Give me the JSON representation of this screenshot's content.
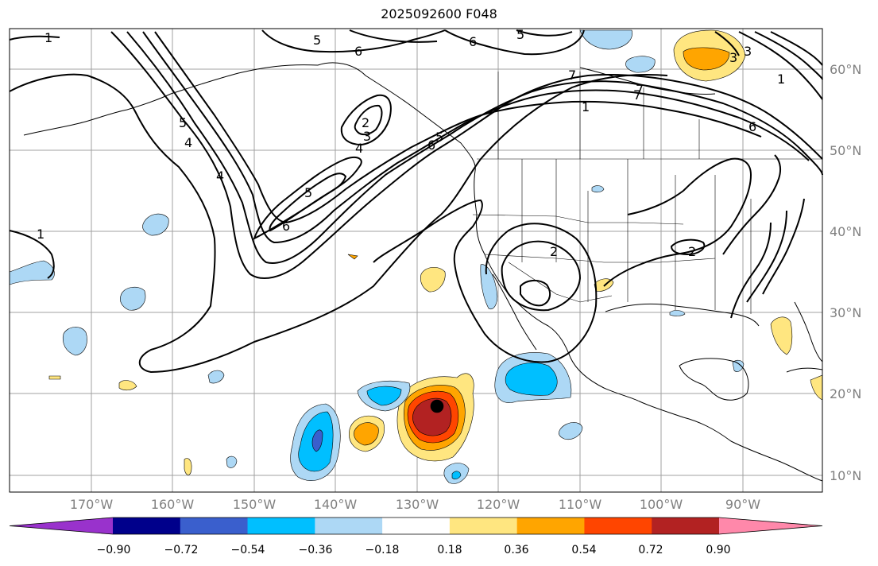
{
  "title": "2025092600 F048",
  "lat_labels": [
    "60°N",
    "50°N",
    "40°N",
    "30°N",
    "20°N",
    "10°N"
  ],
  "lon_labels": [
    "170°W",
    "160°W",
    "150°W",
    "140°W",
    "130°W",
    "120°W",
    "110°W",
    "100°W",
    "90°W"
  ],
  "colorbar": {
    "ticks": [
      "−0.90",
      "−0.72",
      "−0.54",
      "−0.36",
      "−0.18",
      "0.18",
      "0.36",
      "0.54",
      "0.72",
      "0.90"
    ],
    "colors": [
      "#9932cc",
      "#00008b",
      "#3a5fcd",
      "#00bfff",
      "#add8f5",
      "#ffffff",
      "#ffe680",
      "#ffa500",
      "#ff4500",
      "#b22222",
      "#ff88aa"
    ]
  },
  "contour_labels": [
    "1",
    "5",
    "6",
    "5",
    "6",
    "5",
    "6",
    "4",
    "5",
    "4",
    "2",
    "3",
    "4",
    "5",
    "6",
    "7",
    "1",
    "2",
    "2",
    "1",
    "6",
    "3",
    "3",
    "7",
    "7",
    "1"
  ],
  "colors": {
    "frame": "#000000",
    "grid": "#a0a0a0",
    "coast": "#000000",
    "contour": "#000000"
  }
}
